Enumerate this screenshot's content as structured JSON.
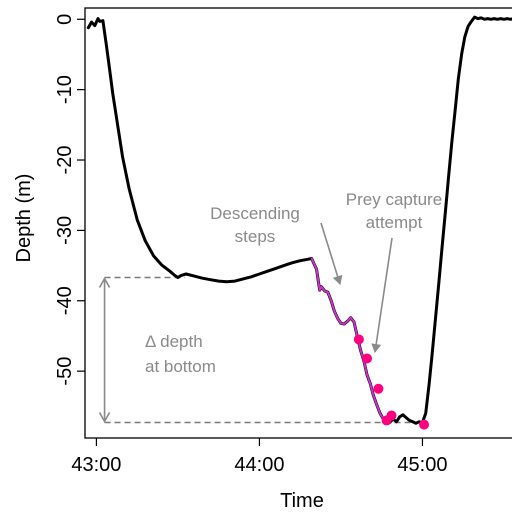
{
  "chart_data": {
    "type": "line",
    "xlabel": "Time",
    "ylabel": "Depth (m)",
    "xlim": [
      42.93,
      45.58
    ],
    "ylim": [
      -59.5,
      1.6
    ],
    "x_ticks": [
      {
        "value": 43,
        "label": "43:00"
      },
      {
        "value": 44,
        "label": "44:00"
      },
      {
        "value": 45,
        "label": "45:00"
      }
    ],
    "y_ticks": [
      {
        "value": 0,
        "label": "0"
      },
      {
        "value": -10,
        "label": "-10"
      },
      {
        "value": -20,
        "label": "-20"
      },
      {
        "value": -30,
        "label": "-30"
      },
      {
        "value": -40,
        "label": "-40"
      },
      {
        "value": -50,
        "label": "-50"
      }
    ],
    "series": [
      {
        "role": "dive-profile",
        "color": "#000000",
        "x": [
          42.95,
          42.97,
          42.99,
          43.01,
          43.02,
          43.04,
          43.06,
          43.08,
          43.1,
          43.13,
          43.16,
          43.2,
          43.25,
          43.3,
          43.35,
          43.4,
          43.45,
          43.48,
          43.5,
          43.52,
          43.55,
          43.6,
          43.65,
          43.7,
          43.75,
          43.8,
          43.85,
          43.9,
          43.95,
          44.0,
          44.05,
          44.1,
          44.15,
          44.2,
          44.25,
          44.3,
          44.32,
          44.35,
          44.37,
          44.38,
          44.4,
          44.42,
          44.44,
          44.46,
          44.48,
          44.5,
          44.52,
          44.54,
          44.56,
          44.58,
          44.6,
          44.62,
          44.64,
          44.66,
          44.68,
          44.7,
          44.72,
          44.74,
          44.76,
          44.78,
          44.8,
          44.82,
          44.84,
          44.86,
          44.88,
          44.9,
          44.92,
          44.94,
          44.96,
          44.98,
          45.0,
          45.02,
          45.04,
          45.06,
          45.08,
          45.1,
          45.12,
          45.14,
          45.16,
          45.18,
          45.2,
          45.22,
          45.24,
          45.26,
          45.28,
          45.3,
          45.32,
          45.34,
          45.36,
          45.38,
          45.4,
          45.42,
          45.44,
          45.46,
          45.48,
          45.5,
          45.52,
          45.54,
          45.56
        ],
        "y": [
          -1.2,
          -0.4,
          -0.9,
          0.1,
          -0.3,
          -0.2,
          -3.5,
          -7,
          -10.5,
          -15,
          -19.5,
          -24,
          -28.5,
          -31.5,
          -33.6,
          -34.9,
          -35.8,
          -36.4,
          -36.7,
          -36.4,
          -36.2,
          -36.5,
          -36.8,
          -37.0,
          -37.2,
          -37.3,
          -37.2,
          -36.9,
          -36.6,
          -36.2,
          -35.8,
          -35.4,
          -35.0,
          -34.6,
          -34.3,
          -34.1,
          -34.0,
          -35.5,
          -38.5,
          -38.0,
          -38.6,
          -38.8,
          -40.0,
          -41.5,
          -42.5,
          -43.2,
          -43.3,
          -42.9,
          -42.4,
          -43.0,
          -45.0,
          -47.0,
          -48.5,
          -50.5,
          -51.8,
          -53.5,
          -54.8,
          -56.0,
          -56.8,
          -57.4,
          -57.3,
          -56.8,
          -57.2,
          -56.5,
          -56.2,
          -56.6,
          -57.0,
          -57.2,
          -57.4,
          -57.2,
          -57.3,
          -56.0,
          -52.0,
          -47.5,
          -42.5,
          -37.5,
          -32.5,
          -27.5,
          -22.5,
          -17.5,
          -13.0,
          -8.5,
          -5.0,
          -2.5,
          -1.0,
          -0.3,
          0.3,
          0.1,
          0.2,
          0.0,
          0.1,
          0.0,
          0.1,
          0.0,
          0.1,
          0.0,
          0.1,
          0.0,
          0.1
        ]
      },
      {
        "role": "descending-steps",
        "color": "#cc33cc",
        "x": [
          44.32,
          44.35,
          44.37,
          44.38,
          44.4,
          44.42,
          44.44,
          44.46,
          44.48,
          44.5,
          44.52,
          44.54,
          44.56,
          44.58,
          44.6,
          44.62,
          44.64,
          44.66,
          44.68,
          44.7,
          44.72,
          44.74,
          44.76,
          44.78,
          44.8
        ],
        "y": [
          -34.0,
          -35.5,
          -38.5,
          -38.0,
          -38.6,
          -38.8,
          -40.0,
          -41.5,
          -42.5,
          -43.2,
          -43.3,
          -42.9,
          -42.4,
          -43.0,
          -45.0,
          -47.0,
          -48.5,
          -50.5,
          -51.8,
          -53.5,
          -54.8,
          -56.0,
          -56.8,
          -57.4,
          -57.3
        ]
      }
    ],
    "prey_capture_points": {
      "color": "#ff0080",
      "x": [
        44.61,
        44.66,
        44.73,
        44.78,
        44.81,
        45.01
      ],
      "y": [
        -45.5,
        -48.2,
        -52.5,
        -57.0,
        -56.3,
        -57.6
      ]
    },
    "reference_lines": {
      "top_depth": -36.7,
      "bottom_depth": -57.3,
      "arrow_time": 43.05
    },
    "annotations": {
      "depth_label_line1": "Δ depth",
      "depth_label_line2": "at bottom",
      "steps_label_line1": "Descending",
      "steps_label_line2": "steps",
      "prey_label_line1": "Prey capture",
      "prey_label_line2": "attempt"
    },
    "grid": false,
    "legend": "none"
  }
}
